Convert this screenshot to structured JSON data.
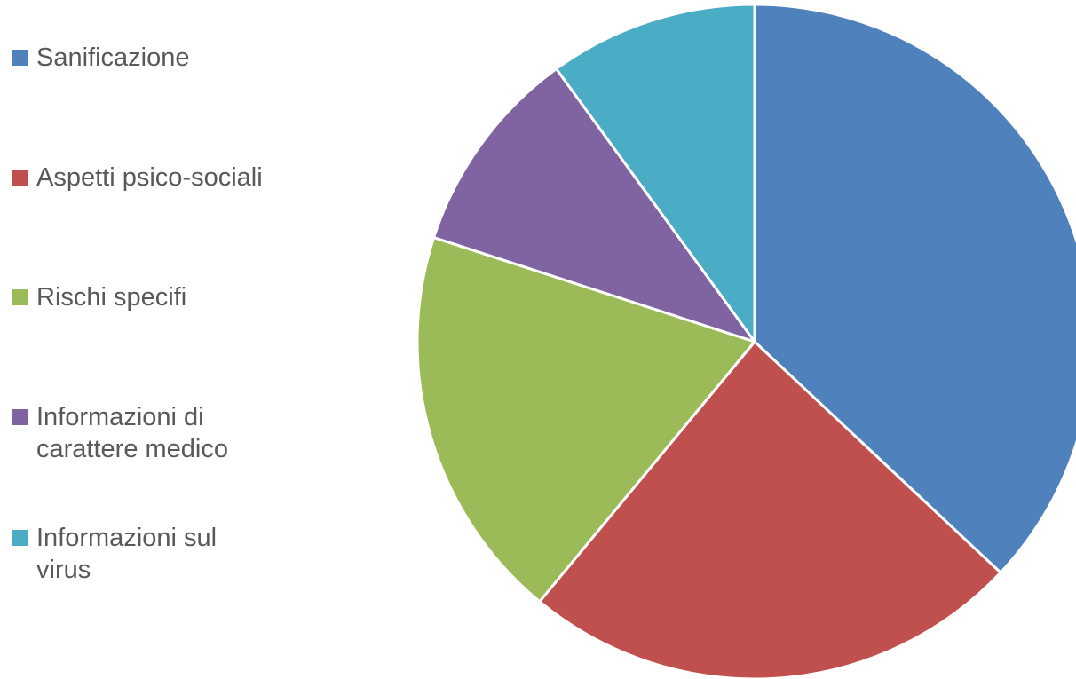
{
  "chart_data": {
    "type": "pie",
    "title": "",
    "legend_position": "left",
    "start_angle_deg": 0,
    "direction": "clockwise",
    "slices": [
      {
        "label": "Sanificazione",
        "value": 37,
        "color": "#4F81BD"
      },
      {
        "label": "Aspetti psico-sociali",
        "value": 24,
        "color": "#C0504D"
      },
      {
        "label": "Rischi specifi",
        "value": 19,
        "color": "#9BBB59"
      },
      {
        "label": "Informazioni di carattere medico",
        "value": 10,
        "color": "#8064A2"
      },
      {
        "label": "Informazioni sul virus",
        "value": 10,
        "color": "#4BACC6"
      }
    ]
  },
  "legend": {
    "items": [
      {
        "label": "Sanificazione"
      },
      {
        "label": "Aspetti psico-sociali"
      },
      {
        "label": "Rischi specifi"
      },
      {
        "label": "Informazioni di\ncarattere medico"
      },
      {
        "label": "Informazioni sul\nvirus"
      }
    ]
  }
}
